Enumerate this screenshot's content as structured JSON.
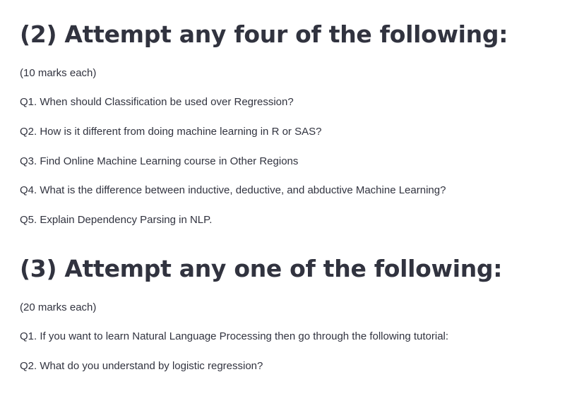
{
  "sections": [
    {
      "heading": "(2) Attempt any four of the following:",
      "marks": "(10 marks each)",
      "questions": [
        "Q1. When should Classification be used over Regression?",
        "Q2. How is it different from doing machine learning in R or SAS?",
        "Q3. Find Online Machine Learning course in Other Regions",
        "Q4. What is the difference between inductive, deductive, and abductive Machine Learning?",
        "Q5. Explain Dependency Parsing in NLP."
      ]
    },
    {
      "heading": "(3) Attempt any one of the following:",
      "marks": "(20 marks each)",
      "questions": [
        "Q1. If you want to learn Natural Language Processing then go through the following tutorial:",
        "Q2. What do you understand by logistic regression?"
      ]
    }
  ]
}
